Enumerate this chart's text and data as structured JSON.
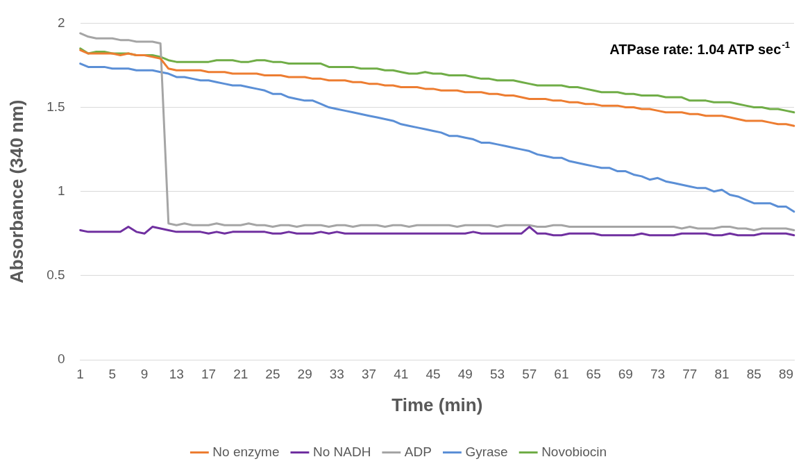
{
  "chart_data": {
    "type": "line",
    "xlabel": "Time (min)",
    "ylabel": "Absorbance (340 nm)",
    "annotations": [
      "ATPase rate: 1.04 ATP sec$^{-1}$"
    ],
    "categories": [
      "1",
      null,
      null,
      null,
      "5",
      null,
      null,
      null,
      "9",
      null,
      null,
      null,
      "13",
      null,
      null,
      null,
      "17",
      null,
      null,
      null,
      "21",
      null,
      null,
      null,
      "25",
      null,
      null,
      null,
      "29",
      null,
      null,
      null,
      "33",
      null,
      null,
      null,
      "37",
      null,
      null,
      null,
      "41",
      null,
      null,
      null,
      "45",
      null,
      null,
      null,
      "49",
      null,
      null,
      null,
      "53",
      null,
      null,
      null,
      "57",
      null,
      null,
      null,
      "61",
      null,
      null,
      null,
      "65",
      null,
      null,
      null,
      "69",
      null,
      null,
      null,
      "73",
      null,
      null,
      null,
      "77",
      null,
      null,
      null,
      "81",
      null,
      null,
      null,
      "85",
      null,
      null,
      null,
      "89",
      null
    ],
    "ylim": [
      0,
      2
    ],
    "yticks": [
      0,
      0.5,
      1,
      1.5,
      2
    ],
    "grid": "y",
    "legend": "bottom",
    "marker": "none",
    "line_style": "solid",
    "series": [
      {
        "name": "No enzyme",
        "color": "#ed7d31",
        "values": [
          1.84,
          1.82,
          1.82,
          1.82,
          1.82,
          1.81,
          1.82,
          1.81,
          1.81,
          1.8,
          1.79,
          1.73,
          1.72,
          1.72,
          1.72,
          1.72,
          1.71,
          1.71,
          1.71,
          1.7,
          1.7,
          1.7,
          1.7,
          1.69,
          1.69,
          1.69,
          1.68,
          1.68,
          1.68,
          1.67,
          1.67,
          1.66,
          1.66,
          1.66,
          1.65,
          1.65,
          1.64,
          1.64,
          1.63,
          1.63,
          1.62,
          1.62,
          1.62,
          1.61,
          1.61,
          1.6,
          1.6,
          1.6,
          1.59,
          1.59,
          1.59,
          1.58,
          1.58,
          1.57,
          1.57,
          1.56,
          1.55,
          1.55,
          1.55,
          1.54,
          1.54,
          1.53,
          1.53,
          1.52,
          1.52,
          1.51,
          1.51,
          1.51,
          1.5,
          1.5,
          1.49,
          1.49,
          1.48,
          1.47,
          1.47,
          1.47,
          1.46,
          1.46,
          1.45,
          1.45,
          1.45,
          1.44,
          1.43,
          1.42,
          1.42,
          1.42,
          1.41,
          1.4,
          1.4,
          1.39
        ]
      },
      {
        "name": "No NADH",
        "color": "#7030a0",
        "values": [
          0.77,
          0.76,
          0.76,
          0.76,
          0.76,
          0.76,
          0.79,
          0.76,
          0.75,
          0.79,
          0.78,
          0.77,
          0.76,
          0.76,
          0.76,
          0.76,
          0.75,
          0.76,
          0.75,
          0.76,
          0.76,
          0.76,
          0.76,
          0.76,
          0.75,
          0.75,
          0.76,
          0.75,
          0.75,
          0.75,
          0.76,
          0.75,
          0.76,
          0.75,
          0.75,
          0.75,
          0.75,
          0.75,
          0.75,
          0.75,
          0.75,
          0.75,
          0.75,
          0.75,
          0.75,
          0.75,
          0.75,
          0.75,
          0.75,
          0.76,
          0.75,
          0.75,
          0.75,
          0.75,
          0.75,
          0.75,
          0.79,
          0.75,
          0.75,
          0.74,
          0.74,
          0.75,
          0.75,
          0.75,
          0.75,
          0.74,
          0.74,
          0.74,
          0.74,
          0.74,
          0.75,
          0.74,
          0.74,
          0.74,
          0.74,
          0.75,
          0.75,
          0.75,
          0.75,
          0.74,
          0.74,
          0.75,
          0.74,
          0.74,
          0.74,
          0.75,
          0.75,
          0.75,
          0.75,
          0.74
        ]
      },
      {
        "name": "ADP",
        "color": "#a5a5a5",
        "values": [
          1.94,
          1.92,
          1.91,
          1.91,
          1.91,
          1.9,
          1.9,
          1.89,
          1.89,
          1.89,
          1.88,
          0.81,
          0.8,
          0.81,
          0.8,
          0.8,
          0.8,
          0.81,
          0.8,
          0.8,
          0.8,
          0.81,
          0.8,
          0.8,
          0.79,
          0.8,
          0.8,
          0.79,
          0.8,
          0.8,
          0.8,
          0.79,
          0.8,
          0.8,
          0.79,
          0.8,
          0.8,
          0.8,
          0.79,
          0.8,
          0.8,
          0.79,
          0.8,
          0.8,
          0.8,
          0.8,
          0.8,
          0.79,
          0.8,
          0.8,
          0.8,
          0.8,
          0.79,
          0.8,
          0.8,
          0.8,
          0.8,
          0.79,
          0.79,
          0.8,
          0.8,
          0.79,
          0.79,
          0.79,
          0.79,
          0.79,
          0.79,
          0.79,
          0.79,
          0.79,
          0.79,
          0.79,
          0.79,
          0.79,
          0.79,
          0.78,
          0.79,
          0.78,
          0.78,
          0.78,
          0.79,
          0.79,
          0.78,
          0.78,
          0.77,
          0.78,
          0.78,
          0.78,
          0.78,
          0.77
        ]
      },
      {
        "name": "Gyrase",
        "color": "#5b8fd6",
        "values": [
          1.76,
          1.74,
          1.74,
          1.74,
          1.73,
          1.73,
          1.73,
          1.72,
          1.72,
          1.72,
          1.71,
          1.7,
          1.68,
          1.68,
          1.67,
          1.66,
          1.66,
          1.65,
          1.64,
          1.63,
          1.63,
          1.62,
          1.61,
          1.6,
          1.58,
          1.58,
          1.56,
          1.55,
          1.54,
          1.54,
          1.52,
          1.5,
          1.49,
          1.48,
          1.47,
          1.46,
          1.45,
          1.44,
          1.43,
          1.42,
          1.4,
          1.39,
          1.38,
          1.37,
          1.36,
          1.35,
          1.33,
          1.33,
          1.32,
          1.31,
          1.29,
          1.29,
          1.28,
          1.27,
          1.26,
          1.25,
          1.24,
          1.22,
          1.21,
          1.2,
          1.2,
          1.18,
          1.17,
          1.16,
          1.15,
          1.14,
          1.14,
          1.12,
          1.12,
          1.1,
          1.09,
          1.07,
          1.08,
          1.06,
          1.05,
          1.04,
          1.03,
          1.02,
          1.02,
          1.0,
          1.01,
          0.98,
          0.97,
          0.95,
          0.93,
          0.93,
          0.93,
          0.91,
          0.91,
          0.88
        ]
      },
      {
        "name": "Novobiocin",
        "color": "#70ad47",
        "values": [
          1.85,
          1.82,
          1.83,
          1.83,
          1.82,
          1.82,
          1.82,
          1.81,
          1.81,
          1.81,
          1.8,
          1.78,
          1.77,
          1.77,
          1.77,
          1.77,
          1.77,
          1.78,
          1.78,
          1.78,
          1.77,
          1.77,
          1.78,
          1.78,
          1.77,
          1.77,
          1.76,
          1.76,
          1.76,
          1.76,
          1.76,
          1.74,
          1.74,
          1.74,
          1.74,
          1.73,
          1.73,
          1.73,
          1.72,
          1.72,
          1.71,
          1.7,
          1.7,
          1.71,
          1.7,
          1.7,
          1.69,
          1.69,
          1.69,
          1.68,
          1.67,
          1.67,
          1.66,
          1.66,
          1.66,
          1.65,
          1.64,
          1.63,
          1.63,
          1.63,
          1.63,
          1.62,
          1.62,
          1.61,
          1.6,
          1.59,
          1.59,
          1.59,
          1.58,
          1.58,
          1.57,
          1.57,
          1.57,
          1.56,
          1.56,
          1.56,
          1.54,
          1.54,
          1.54,
          1.53,
          1.53,
          1.53,
          1.52,
          1.51,
          1.5,
          1.5,
          1.49,
          1.49,
          1.48,
          1.47
        ]
      }
    ]
  }
}
